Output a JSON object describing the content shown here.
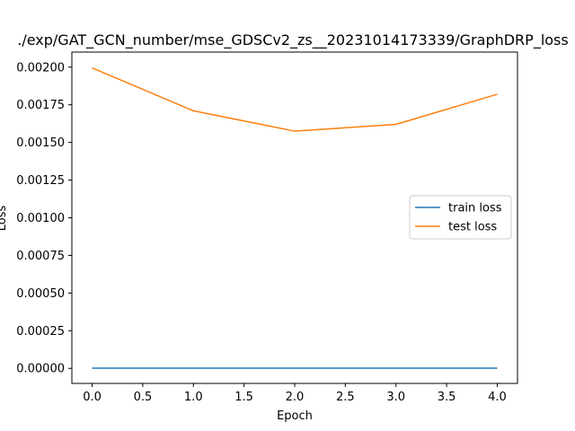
{
  "chart_data": {
    "type": "line",
    "title": "./exp/GAT_GCN_number/mse_GDSCv2_zs__20231014173339/GraphDRP_loss",
    "xlabel": "Epoch",
    "ylabel": "Loss",
    "x": [
      0,
      1,
      2,
      3,
      4
    ],
    "xlim": [
      -0.2,
      4.2
    ],
    "ylim": [
      -0.0001,
      0.0021
    ],
    "xticks": [
      0.0,
      0.5,
      1.0,
      1.5,
      2.0,
      2.5,
      3.0,
      3.5,
      4.0
    ],
    "xtick_labels": [
      "0.0",
      "0.5",
      "1.0",
      "1.5",
      "2.0",
      "2.5",
      "3.0",
      "3.5",
      "4.0"
    ],
    "yticks": [
      0,
      0.00025,
      0.0005,
      0.00075,
      0.001,
      0.00125,
      0.0015,
      0.00175,
      0.002
    ],
    "ytick_labels": [
      "0.00000",
      "0.00025",
      "0.00050",
      "0.00075",
      "0.00100",
      "0.00125",
      "0.00150",
      "0.00175",
      "0.00200"
    ],
    "grid": false,
    "legend_position": "center-right",
    "series": [
      {
        "name": "train loss",
        "color": "#1f77b4",
        "values": [
          1e-06,
          1e-06,
          1e-06,
          1e-06,
          1e-06
        ]
      },
      {
        "name": "test loss",
        "color": "#ff7f0e",
        "values": [
          0.001995,
          0.00171,
          0.001575,
          0.00162,
          0.00182
        ]
      }
    ]
  }
}
